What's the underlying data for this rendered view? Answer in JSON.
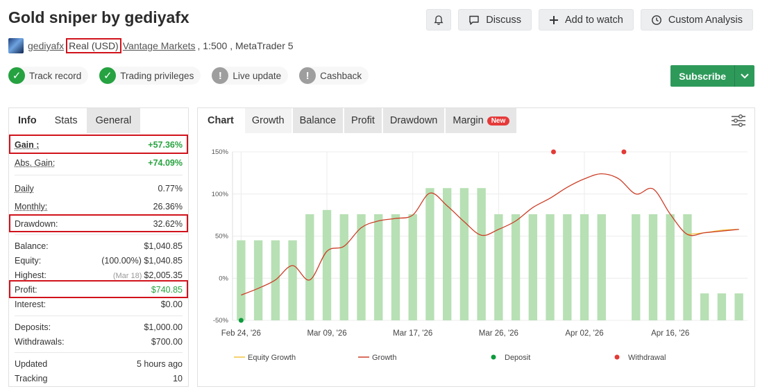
{
  "page": {
    "title": "Gold sniper by gediyafx"
  },
  "topbar": {
    "notify_icon": "bell-icon",
    "discuss_label": "Discuss",
    "watch_label": "Add to watch",
    "custom_label": "Custom Analysis"
  },
  "account": {
    "user": "gediyafx",
    "type": "Real (USD)",
    "broker": "Vantage Markets",
    "leverage": ", 1:500 , MetaTrader 5"
  },
  "badges": [
    {
      "label": "Track record",
      "status": "ok"
    },
    {
      "label": "Trading privileges",
      "status": "ok"
    },
    {
      "label": "Live update",
      "status": "warn"
    },
    {
      "label": "Cashback",
      "status": "warn"
    }
  ],
  "subscribe": {
    "label": "Subscribe"
  },
  "left_tabs": [
    "Info",
    "Stats",
    "General"
  ],
  "stats": {
    "gain_label": "Gain :",
    "gain_value": "+57.36%",
    "abs_gain_label": "Abs. Gain:",
    "abs_gain_value": "+74.09%",
    "daily_label": "Daily",
    "daily_value": "0.77%",
    "monthly_label": "Monthly:",
    "monthly_value": "26.36%",
    "drawdown_label": "Drawdown:",
    "drawdown_value": "32.62%",
    "balance_label": "Balance:",
    "balance_value": "$1,040.85",
    "equity_label": "Equity:",
    "equity_value": "(100.00%) $1,040.85",
    "highest_label": "Highest:",
    "highest_sub": "(Mar 18)",
    "highest_value": "$2,005.35",
    "profit_label": "Profit:",
    "profit_value": "$740.85",
    "interest_label": "Interest:",
    "interest_value": "$0.00",
    "deposits_label": "Deposits:",
    "deposits_value": "$1,000.00",
    "withdrawals_label": "Withdrawals:",
    "withdrawals_value": "$700.00",
    "updated_label": "Updated",
    "updated_value": "5 hours ago",
    "tracking_label": "Tracking",
    "tracking_value": "10"
  },
  "right_tabs": {
    "chart": "Chart",
    "growth": "Growth",
    "balance": "Balance",
    "profit": "Profit",
    "drawdown": "Drawdown",
    "margin": "Margin",
    "new": "New"
  },
  "colors": {
    "bar": "#b7e0b4",
    "growth_line": "#cc3e27",
    "equity_line": "#f3c33f",
    "deposit": "#0d9b3c",
    "withdrawal": "#e33a36"
  },
  "chart_data": {
    "type": "bar",
    "ylim": [
      -50,
      150
    ],
    "yticks": [
      "150%",
      "100%",
      "50%",
      "0%",
      "-50%"
    ],
    "ytick_values": [
      150,
      100,
      50,
      0,
      -50
    ],
    "xticks": [
      "Feb 24, '26",
      "Mar 09, '26",
      "Mar 17, '26",
      "Mar 26, '26",
      "Apr 02, '26",
      "Apr 16, '26"
    ],
    "xtick_positions": [
      0,
      5,
      10,
      15,
      20,
      25
    ],
    "bars": [
      45,
      45,
      45,
      45,
      76,
      81,
      76,
      76,
      76,
      76,
      76,
      107,
      107,
      107,
      107,
      76,
      76,
      76,
      76,
      76,
      76,
      76,
      null,
      76,
      76,
      76,
      76,
      -18,
      -18,
      -18
    ],
    "growth": [
      -20,
      -12,
      -2,
      15,
      -2,
      32,
      38,
      60,
      68,
      71,
      75,
      101,
      86,
      67,
      51,
      58,
      68,
      84,
      95,
      108,
      118,
      124,
      118,
      100,
      106,
      76,
      52,
      54,
      56,
      58
    ],
    "equity_growth": [
      52,
      54,
      57,
      58
    ],
    "equity_start_index": 26,
    "deposits": [
      {
        "index": 0,
        "value": -50
      }
    ],
    "withdrawals": [
      {
        "index": 18.2,
        "value": 150
      },
      {
        "index": 22.3,
        "value": 150
      }
    ],
    "legend": [
      "Equity Growth",
      "Growth",
      "Deposit",
      "Withdrawal"
    ],
    "grid": true,
    "legend_position": "bottom"
  }
}
